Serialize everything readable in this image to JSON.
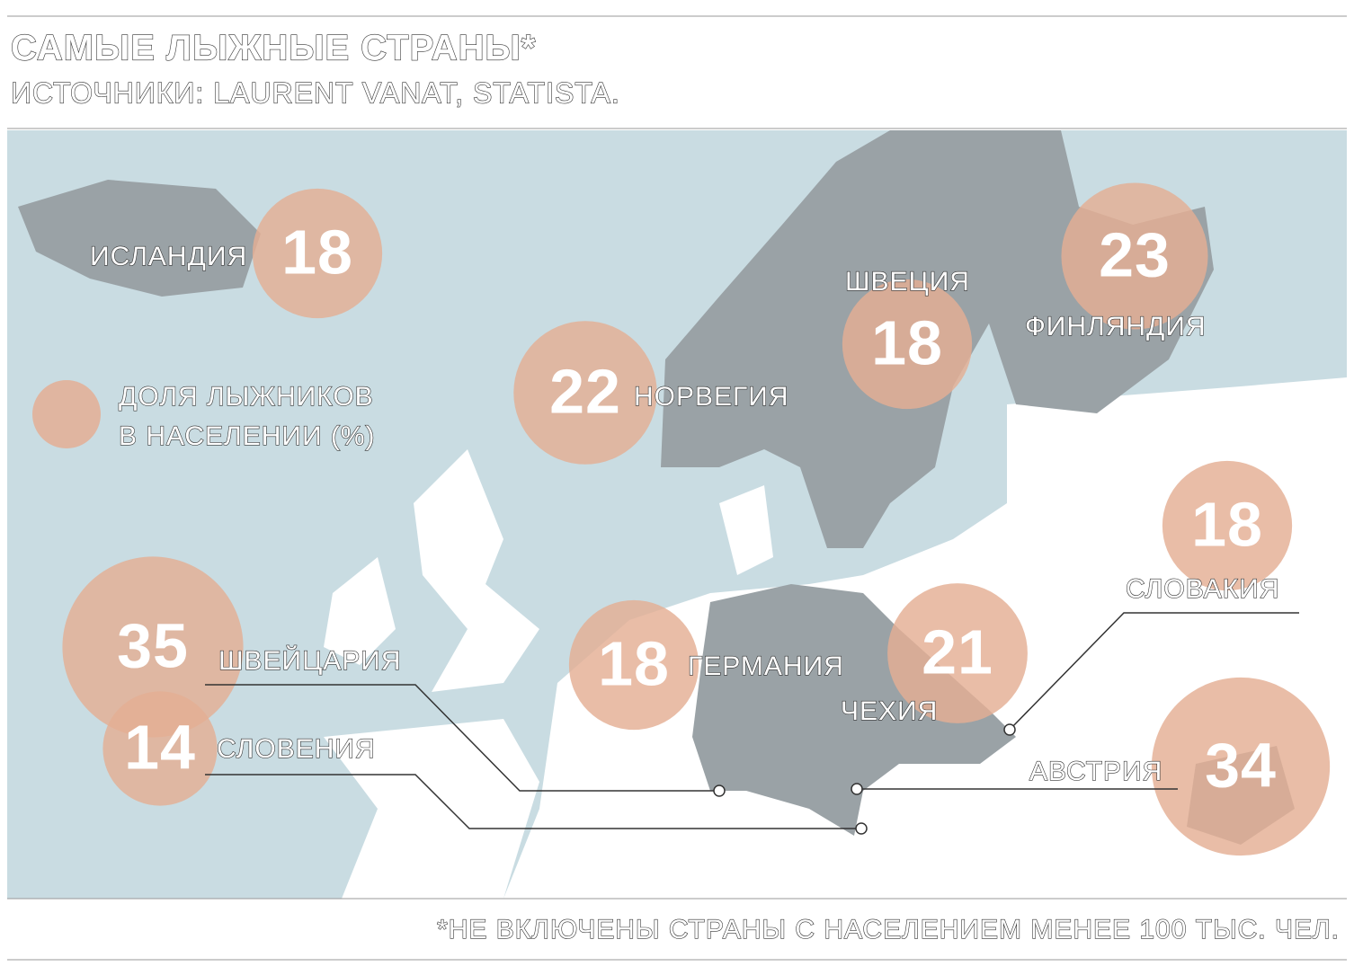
{
  "header": {
    "title": "САМЫЕ ЛЫЖНЫЕ СТРАНЫ*",
    "source": "ИСТОЧНИКИ: LAURENT VANAT, STATISTA."
  },
  "legend": {
    "label_lines": [
      "ДОЛЯ ЛЫЖНИКОВ",
      "В НАСЕЛЕНИИ (%)"
    ]
  },
  "countries": [
    {
      "name": "ИСЛАНДИЯ",
      "value": 18
    },
    {
      "name": "НОРВЕГИЯ",
      "value": 22
    },
    {
      "name": "ШВЕЦИЯ",
      "value": 18
    },
    {
      "name": "ФИНЛЯНДИЯ",
      "value": 23
    },
    {
      "name": "СЛОВАКИЯ",
      "value": 18
    },
    {
      "name": "ЧЕХИЯ",
      "value": 21
    },
    {
      "name": "ГЕРМАНИЯ",
      "value": 18
    },
    {
      "name": "ШВЕЙЦАРИЯ",
      "value": 35
    },
    {
      "name": "СЛОВЕНИЯ",
      "value": 14
    },
    {
      "name": "АВСТРИЯ",
      "value": 34
    }
  ],
  "footnote": "*НЕ ВКЛЮЧЕНЫ СТРАНЫ С НАСЕЛЕНИЕМ МЕНЕЕ 100 ТЫС. ЧЕЛ."
}
